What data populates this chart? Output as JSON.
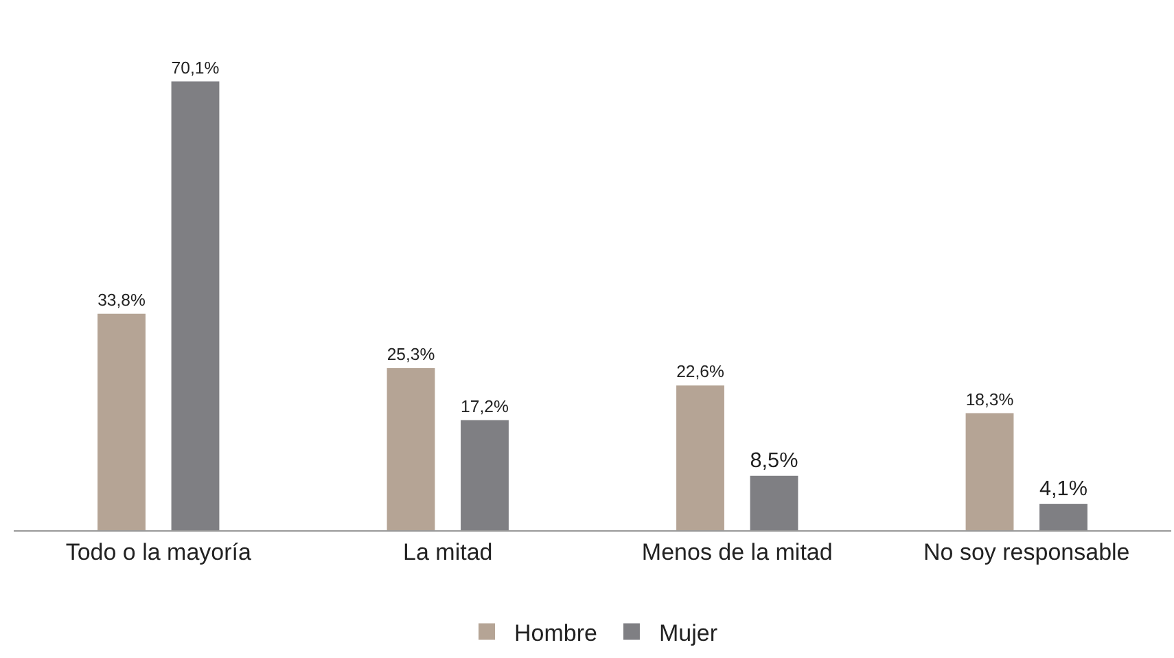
{
  "chart_data": {
    "type": "bar",
    "categories": [
      "Todo o la mayoría",
      "La mitad",
      "Menos de la mitad",
      "No soy responsable"
    ],
    "series": [
      {
        "name": "Hombre",
        "color": "#b5a495",
        "values": [
          33.8,
          25.3,
          22.6,
          18.3
        ],
        "value_labels": [
          "33,8%",
          "25,3%",
          "22,6%",
          "18,3%"
        ]
      },
      {
        "name": "Mujer",
        "color": "#7f7f83",
        "values": [
          70.1,
          17.2,
          8.5,
          4.1
        ],
        "value_labels": [
          "70,1%",
          "17,2%",
          "8,5%",
          "4,1%"
        ]
      }
    ],
    "grid": false,
    "legend": "bottom"
  }
}
